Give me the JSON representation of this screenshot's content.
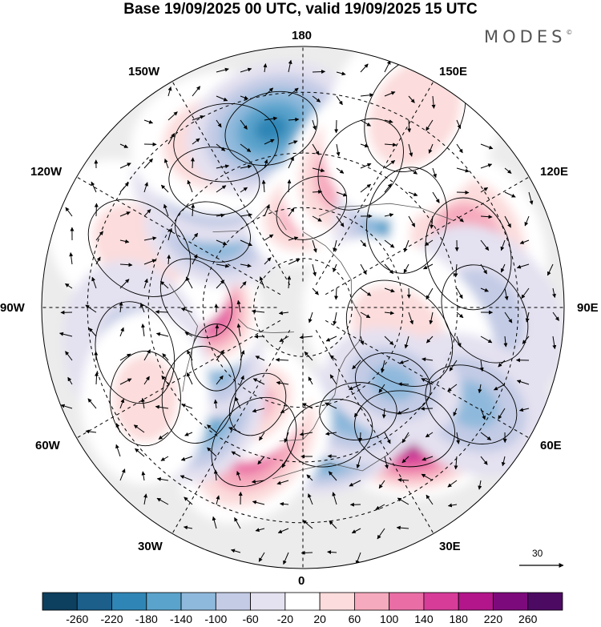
{
  "title": "Base 19/09/2025 00 UTC, valid 19/09/2025 15 UTC",
  "brand": "MODES",
  "brand_mark": "©",
  "longitude_labels": {
    "top": "180",
    "bottom": "0",
    "left": "90W",
    "right": "90E",
    "upper_left_1": "150W",
    "upper_left_2": "120W",
    "lower_left_1": "60W",
    "lower_left_2": "30W",
    "upper_right_1": "150E",
    "upper_right_2": "120E",
    "lower_right_1": "60E",
    "lower_right_2": "30E"
  },
  "vector_reference": {
    "value": "30",
    "icon": "arrow-right-icon"
  },
  "colorbar": {
    "colors": [
      "#0d3f5e",
      "#1b5f8a",
      "#2f86b6",
      "#5aa3cc",
      "#8fb9dc",
      "#c3cbe5",
      "#e4e1f0",
      "#ffffff",
      "#fcdcdc",
      "#f6aabd",
      "#ea6ea5",
      "#d63c98",
      "#b2168a",
      "#7d0a7c",
      "#4d0a63"
    ],
    "labels": [
      "-260",
      "-220",
      "-180",
      "-140",
      "-100",
      "-60",
      "-20",
      "20",
      "60",
      "100",
      "140",
      "180",
      "220",
      "260"
    ]
  },
  "fields": {
    "positive": [
      {
        "lon": 40,
        "lat": 44,
        "value": 290,
        "radius_deg": 9
      },
      {
        "lon": 12,
        "lat": 52,
        "value": -250,
        "radius_deg": 8
      },
      {
        "lon": 28,
        "lat": 55,
        "value": -150,
        "radius_deg": 7
      },
      {
        "lon": 340,
        "lat": 48,
        "value": 170,
        "radius_deg": 9
      },
      {
        "lon": 335,
        "lat": 58,
        "value": 90,
        "radius_deg": 6
      },
      {
        "lon": 310,
        "lat": 50,
        "value": -210,
        "radius_deg": 9
      },
      {
        "lon": 300,
        "lat": 60,
        "value": -120,
        "radius_deg": 6
      },
      {
        "lon": 265,
        "lat": 58,
        "value": 250,
        "radius_deg": 8
      },
      {
        "lon": 250,
        "lat": 40,
        "value": 60,
        "radius_deg": 10
      },
      {
        "lon": 230,
        "lat": 55,
        "value": -120,
        "radius_deg": 7
      },
      {
        "lon": 215,
        "lat": 45,
        "value": -140,
        "radius_deg": 8
      },
      {
        "lon": 205,
        "lat": 38,
        "value": 110,
        "radius_deg": 9
      },
      {
        "lon": 190,
        "lat": 38,
        "value": -170,
        "radius_deg": 8
      },
      {
        "lon": 175,
        "lat": 60,
        "value": 140,
        "radius_deg": 7
      },
      {
        "lon": 158,
        "lat": 45,
        "value": 180,
        "radius_deg": 9
      },
      {
        "lon": 130,
        "lat": 50,
        "value": -170,
        "radius_deg": 10
      },
      {
        "lon": 108,
        "lat": 40,
        "value": 150,
        "radius_deg": 10
      },
      {
        "lon": 88,
        "lat": 38,
        "value": -70,
        "radius_deg": 9
      },
      {
        "lon": 75,
        "lat": 60,
        "value": 50,
        "radius_deg": 12
      },
      {
        "lon": 60,
        "lat": 35,
        "value": -110,
        "radius_deg": 8
      },
      {
        "lon": 50,
        "lat": 55,
        "value": -90,
        "radius_deg": 7
      },
      {
        "lon": 285,
        "lat": 40,
        "value": -60,
        "radius_deg": 9
      },
      {
        "lon": 300,
        "lat": 38,
        "value": 70,
        "radius_deg": 8
      },
      {
        "lon": 150,
        "lat": 28,
        "value": 50,
        "radius_deg": 10
      }
    ]
  }
}
